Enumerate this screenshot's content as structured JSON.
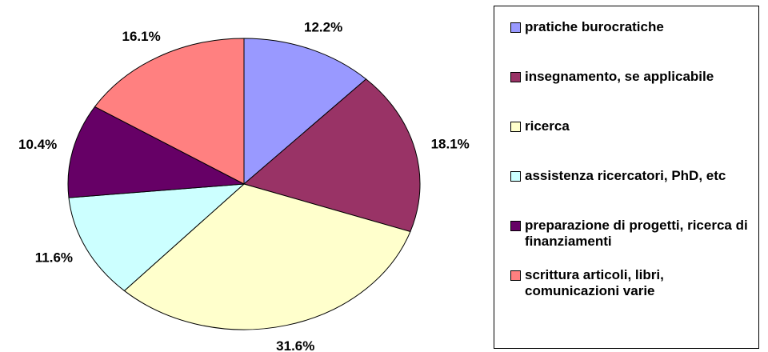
{
  "chart_data": {
    "type": "pie",
    "categories": [
      "pratiche burocratiche",
      "insegnamento, se applicabile",
      "ricerca",
      "assistenza ricercatori, PhD, etc",
      "preparazione di progetti, ricerca di finanziamenti",
      "scrittura articoli, libri, comunicazioni varie"
    ],
    "values": [
      12.2,
      18.1,
      31.6,
      11.6,
      10.4,
      16.1
    ],
    "value_labels": [
      "12.2%",
      "18.1%",
      "31.6%",
      "11.6%",
      "10.4%",
      "16.1%"
    ],
    "colors": [
      "#9999ff",
      "#993366",
      "#ffffcc",
      "#ccffff",
      "#660066",
      "#ff8080"
    ],
    "legend": "right"
  }
}
